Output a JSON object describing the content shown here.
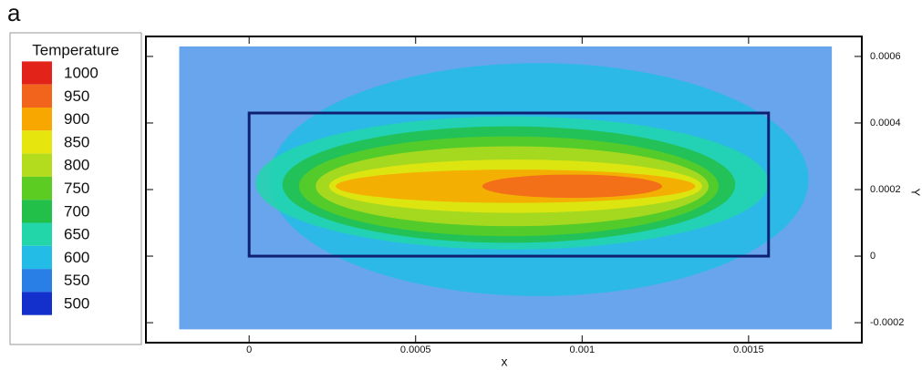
{
  "panel_label": "a",
  "chart_data": {
    "type": "contour",
    "xlabel": "x",
    "ylabel": "Y",
    "colorbar": {
      "title": "Temperature",
      "levels": [
        {
          "value": 1000,
          "color": "#e2231a"
        },
        {
          "value": 950,
          "color": "#f2641c"
        },
        {
          "value": 900,
          "color": "#f7a700"
        },
        {
          "value": 850,
          "color": "#e6e60e"
        },
        {
          "value": 800,
          "color": "#b4dc1e"
        },
        {
          "value": 750,
          "color": "#5ccc22"
        },
        {
          "value": 700,
          "color": "#22c048"
        },
        {
          "value": 650,
          "color": "#22d6aa"
        },
        {
          "value": 600,
          "color": "#22bce6"
        },
        {
          "value": 550,
          "color": "#2a7fe6"
        },
        {
          "value": 500,
          "color": "#1430cc"
        }
      ]
    },
    "xlim": [
      -0.00031,
      0.00184
    ],
    "ylim": [
      -0.00026,
      0.00066
    ],
    "xticks": [
      0,
      0.0005,
      0.001,
      0.0015
    ],
    "yticks": [
      -0.0002,
      0,
      0.0002,
      0.0004,
      0.0006
    ],
    "domain": {
      "value": 550,
      "x": [
        -0.00021,
        0.00175
      ],
      "y": [
        -0.00022,
        0.00063
      ]
    },
    "bed": {
      "x": [
        0,
        0.00156
      ],
      "y": [
        0,
        0.00043
      ]
    },
    "field": [
      {
        "value": 600,
        "x": [
          6e-05,
          0.00168
        ],
        "y": [
          -0.00012,
          0.00058
        ]
      },
      {
        "value": 650,
        "x": [
          2e-05,
          0.00156
        ],
        "y": [
          2e-05,
          0.00042
        ]
      },
      {
        "value": 700,
        "x": [
          0.0001,
          0.00146
        ],
        "y": [
          4e-05,
          0.00039
        ]
      },
      {
        "value": 750,
        "x": [
          0.00015,
          0.00141
        ],
        "y": [
          6e-05,
          0.00036
        ]
      },
      {
        "value": 800,
        "x": [
          0.0002,
          0.00138
        ],
        "y": [
          9e-05,
          0.00033
        ]
      },
      {
        "value": 850,
        "x": [
          0.00024,
          0.00136
        ],
        "y": [
          0.00013,
          0.00029
        ]
      },
      {
        "value": 900,
        "x": [
          0.00026,
          0.00134
        ],
        "y": [
          0.00016,
          0.00026
        ]
      },
      {
        "value": 950,
        "x": [
          0.0007,
          0.00124
        ],
        "y": [
          0.000175,
          0.000245
        ]
      }
    ]
  }
}
